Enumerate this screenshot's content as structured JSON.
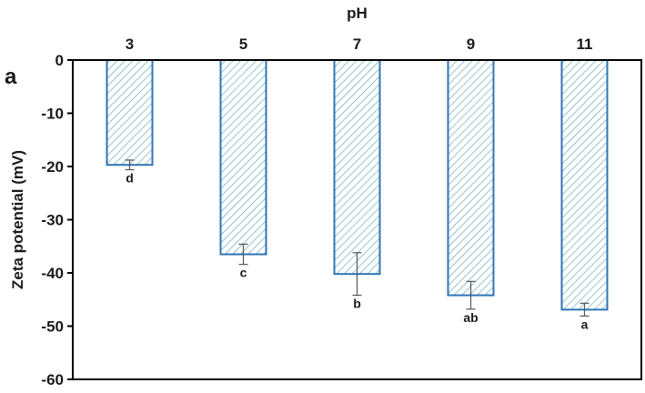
{
  "panel_label": "a",
  "chart_data": {
    "type": "bar",
    "xlabel": "pH",
    "ylabel": "Zeta potential (mV)",
    "categories": [
      "3",
      "5",
      "7",
      "9",
      "11"
    ],
    "values": [
      -19.7,
      -36.5,
      -40.2,
      -44.2,
      -46.9
    ],
    "errors": [
      0.9,
      1.9,
      4.0,
      2.6,
      1.2
    ],
    "significance": [
      "d",
      "c",
      "b",
      "ab",
      "a"
    ],
    "ylim": [
      -60,
      0
    ],
    "yticks": [
      "0",
      "-10",
      "-20",
      "-30",
      "-40",
      "-50",
      "-60"
    ],
    "x_axis_position": "top",
    "grid": false,
    "colors": {
      "bar_edge": "#2e75b6",
      "bar_hatch": "#5fa6b8",
      "bar_fill": "#ffffff",
      "axis": "#000000",
      "error_bar": "#555555"
    }
  }
}
